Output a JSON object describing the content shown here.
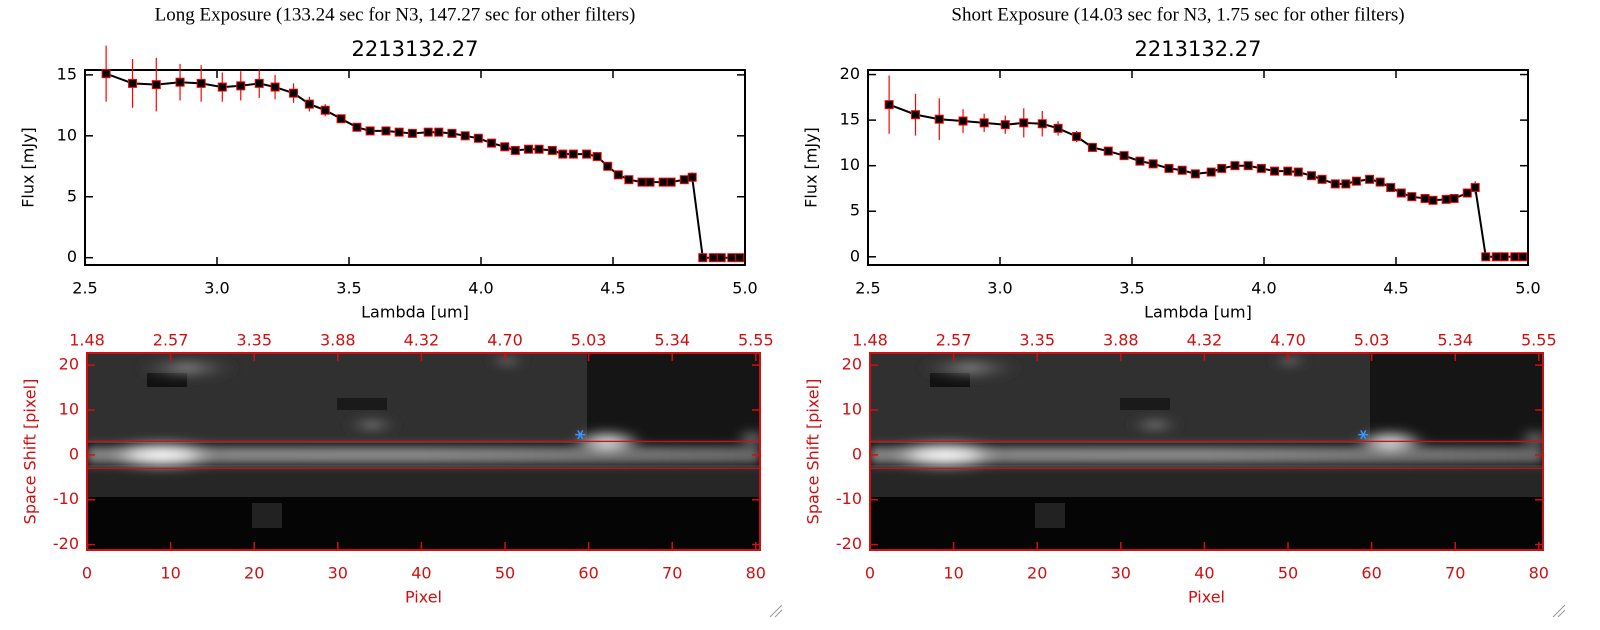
{
  "chart_data": [
    {
      "type": "line",
      "subtitle": "Long Exposure (133.24 sec for N3, 147.27 sec for other filters)",
      "title": "2213132.27",
      "x_label": "Lambda [um]",
      "y_label": "Flux [mJy]",
      "xlim": [
        2.5,
        5.0
      ],
      "xticks": [
        2.5,
        {
          "value": 3,
          "label": "3.0"
        },
        3.5,
        {
          "value": 4,
          "label": "4.0"
        },
        4.5,
        {
          "value": 5,
          "label": "5.0"
        }
      ],
      "ylim": [
        -0.6,
        15.4
      ],
      "yticks": [
        0,
        5,
        10,
        15
      ],
      "color": "#000000",
      "error_color": "#ff0000",
      "x": [
        2.58,
        2.68,
        2.77,
        2.86,
        2.94,
        3.02,
        3.09,
        3.16,
        3.22,
        3.29,
        3.35,
        3.41,
        3.47,
        3.53,
        3.58,
        3.64,
        3.69,
        3.74,
        3.8,
        3.84,
        3.89,
        3.94,
        3.99,
        4.04,
        4.09,
        4.13,
        4.18,
        4.22,
        4.27,
        4.31,
        4.35,
        4.4,
        4.44,
        4.48,
        4.52,
        4.56,
        4.61,
        4.64,
        4.69,
        4.72,
        4.77,
        4.8,
        4.84,
        4.88,
        4.91,
        4.95,
        4.98
      ],
      "values": [
        15.1,
        14.3,
        14.2,
        14.4,
        14.3,
        14.0,
        14.1,
        14.3,
        14.0,
        13.5,
        12.6,
        12.1,
        11.4,
        10.7,
        10.4,
        10.4,
        10.3,
        10.2,
        10.3,
        10.3,
        10.2,
        10.0,
        9.8,
        9.4,
        9.1,
        8.8,
        8.9,
        8.9,
        8.8,
        8.5,
        8.5,
        8.5,
        8.3,
        7.5,
        6.8,
        6.4,
        6.2,
        6.2,
        6.2,
        6.2,
        6.4,
        6.6,
        0,
        0,
        0,
        0,
        0
      ],
      "errors": [
        2.3,
        2.0,
        2.2,
        1.5,
        1.5,
        1.2,
        1.2,
        1.2,
        1.0,
        0.8,
        0.6,
        0.5,
        0.3,
        0.3,
        0.3,
        0.2,
        0.2,
        0.2,
        0.2,
        0.2,
        0.2,
        0.2,
        0.2,
        0.2,
        0.2,
        0.2,
        0.2,
        0.2,
        0.2,
        0.2,
        0.2,
        0.2,
        0.2,
        0.3,
        0.3,
        0.3,
        0.3,
        0.3,
        0.3,
        0.3,
        0.3,
        0.4,
        null,
        null,
        null,
        null,
        null
      ]
    },
    {
      "type": "image",
      "x_label": "Pixel",
      "y_label": "Space Shift [pixel]",
      "xlim": [
        0,
        80.5
      ],
      "xticks": [
        0,
        10,
        20,
        30,
        40,
        50,
        60,
        70,
        80
      ],
      "x2ticks": [
        {
          "value": 0,
          "label": "1.48"
        },
        {
          "value": 10,
          "label": "2.57"
        },
        {
          "value": 20,
          "label": "3.35"
        },
        {
          "value": 30,
          "label": "3.88"
        },
        {
          "value": 40,
          "label": "4.32"
        },
        {
          "value": 50,
          "label": "4.70"
        },
        {
          "value": 60,
          "label": "5.03"
        },
        {
          "value": 70,
          "label": "5.34"
        },
        {
          "value": 80,
          "label": "5.55"
        }
      ],
      "ylim": [
        -21.2,
        22.7
      ],
      "yticks": [
        -20,
        -10,
        0,
        10,
        20
      ],
      "axis_color": "#d01010",
      "hlines": [
        3,
        -3
      ],
      "marker": {
        "x": 59,
        "y": 4.5,
        "color": "#3399ff"
      }
    },
    {
      "type": "line",
      "subtitle": "Short Exposure (14.03 sec for N3, 1.75 sec for other filters)",
      "title": "2213132.27",
      "x_label": "Lambda [um]",
      "y_label": "Flux [mJy]",
      "xlim": [
        2.5,
        5.0
      ],
      "xticks": [
        2.5,
        {
          "value": 3,
          "label": "3.0"
        },
        3.5,
        {
          "value": 4,
          "label": "4.0"
        },
        4.5,
        {
          "value": 5,
          "label": "5.0"
        }
      ],
      "ylim": [
        -0.9,
        20.5
      ],
      "yticks": [
        0,
        5,
        10,
        15,
        20
      ],
      "color": "#000000",
      "error_color": "#ff0000",
      "x": [
        2.58,
        2.68,
        2.77,
        2.86,
        2.94,
        3.02,
        3.09,
        3.16,
        3.22,
        3.29,
        3.35,
        3.41,
        3.47,
        3.53,
        3.58,
        3.64,
        3.69,
        3.74,
        3.8,
        3.84,
        3.89,
        3.94,
        3.99,
        4.04,
        4.09,
        4.13,
        4.18,
        4.22,
        4.27,
        4.31,
        4.35,
        4.4,
        4.44,
        4.48,
        4.52,
        4.56,
        4.61,
        4.64,
        4.69,
        4.72,
        4.77,
        4.8,
        4.84,
        4.88,
        4.91,
        4.95,
        4.98
      ],
      "values": [
        16.7,
        15.6,
        15.1,
        14.9,
        14.7,
        14.5,
        14.7,
        14.6,
        14.1,
        13.2,
        12.0,
        11.6,
        11.1,
        10.5,
        10.2,
        9.7,
        9.5,
        9.1,
        9.3,
        9.7,
        10.0,
        10.0,
        9.7,
        9.4,
        9.4,
        9.3,
        8.9,
        8.5,
        8.0,
        8.0,
        8.3,
        8.5,
        8.2,
        7.6,
        7.0,
        6.6,
        6.4,
        6.2,
        6.3,
        6.4,
        7.0,
        7.6,
        0,
        0,
        0,
        0,
        0
      ],
      "errors": [
        3.2,
        2.3,
        2.3,
        1.3,
        1.0,
        1.0,
        1.6,
        1.4,
        0.8,
        0.6,
        0.5,
        0.4,
        0.3,
        0.3,
        0.3,
        0.3,
        0.3,
        0.3,
        0.3,
        0.3,
        0.3,
        0.3,
        0.3,
        0.3,
        0.3,
        0.3,
        0.3,
        0.3,
        0.3,
        0.3,
        0.3,
        0.3,
        0.3,
        0.3,
        0.3,
        0.3,
        0.3,
        0.3,
        0.3,
        0.4,
        0.5,
        0.7,
        null,
        null,
        null,
        null,
        null
      ]
    },
    {
      "type": "image",
      "x_label": "Pixel",
      "y_label": "Space Shift [pixel]",
      "xlim": [
        0,
        80.5
      ],
      "xticks": [
        0,
        10,
        20,
        30,
        40,
        50,
        60,
        70,
        80
      ],
      "x2ticks": [
        {
          "value": 0,
          "label": "1.48"
        },
        {
          "value": 10,
          "label": "2.57"
        },
        {
          "value": 20,
          "label": "3.35"
        },
        {
          "value": 30,
          "label": "3.88"
        },
        {
          "value": 40,
          "label": "4.32"
        },
        {
          "value": 50,
          "label": "4.70"
        },
        {
          "value": 60,
          "label": "5.03"
        },
        {
          "value": 70,
          "label": "5.34"
        },
        {
          "value": 80,
          "label": "5.55"
        }
      ],
      "ylim": [
        -21.2,
        22.7
      ],
      "yticks": [
        -20,
        -10,
        0,
        10,
        20
      ],
      "axis_color": "#d01010",
      "hlines": [
        3,
        -3
      ],
      "marker": {
        "x": 59,
        "y": 4.5,
        "color": "#3399ff"
      }
    }
  ]
}
